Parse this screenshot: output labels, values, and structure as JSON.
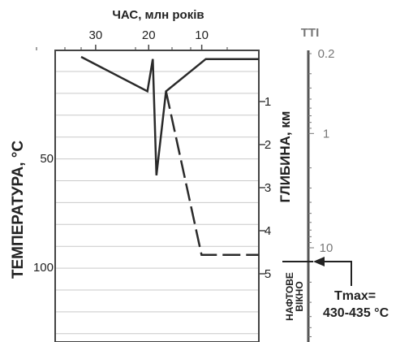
{
  "chart_data": {
    "type": "line",
    "time_axis": {
      "title": "ЧАС, млн років",
      "range_ma": [
        35,
        0
      ],
      "ticks": [
        30,
        20,
        10
      ]
    },
    "temperature_axis": {
      "title": "ТЕМПЕРАТУРА, °С",
      "ticks": [
        50,
        100
      ]
    },
    "depth_axis": {
      "title": "ГЛИБИНА, км",
      "ticks": [
        1,
        2,
        3,
        4,
        5
      ]
    },
    "tti_axis": {
      "title": "TTI",
      "scale": "log",
      "ticks": [
        "0.2",
        "1",
        "10"
      ],
      "tick_values": [
        0.2,
        1,
        10
      ]
    },
    "grid": true,
    "series": [
      {
        "style": "solid",
        "points_ma_depth_km": [
          [
            33.5,
            0.0
          ],
          [
            21.0,
            0.8
          ],
          [
            20.0,
            0.05
          ],
          [
            19.3,
            2.75
          ],
          [
            17.5,
            0.8
          ],
          [
            10.0,
            0.05
          ],
          [
            0.0,
            0.05
          ]
        ]
      },
      {
        "style": "dashed",
        "points_ma_depth_km": [
          [
            17.5,
            0.8
          ],
          [
            10.8,
            4.6
          ],
          [
            0.0,
            4.6
          ]
        ]
      }
    ],
    "oil_window": {
      "label": "НАФТОВЕ ВІКНО",
      "depth_km": 4.1
    },
    "annotation": {
      "line1": "Tmax=",
      "line2": "430-435 °C"
    }
  }
}
